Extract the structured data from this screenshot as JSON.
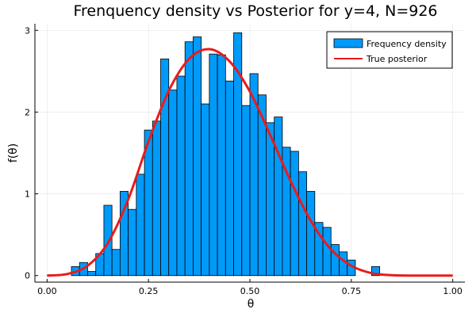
{
  "chart_data": {
    "type": "bar",
    "title": "Frenquency density vs Posterior for y=4, N=926",
    "xlabel": "θ",
    "ylabel": "f(θ)",
    "xlim": [
      -0.03,
      1.03
    ],
    "ylim": [
      -0.08,
      3.08
    ],
    "xticks": [
      {
        "value": 0.0,
        "label": "0.00"
      },
      {
        "value": 0.25,
        "label": "0.25"
      },
      {
        "value": 0.5,
        "label": "0.50"
      },
      {
        "value": 0.75,
        "label": "0.75"
      },
      {
        "value": 1.0,
        "label": "1.00"
      }
    ],
    "yticks": [
      {
        "value": 0,
        "label": "0"
      },
      {
        "value": 1,
        "label": "1"
      },
      {
        "value": 2,
        "label": "2"
      },
      {
        "value": 3,
        "label": "3"
      }
    ],
    "grid": true,
    "legend_position": "top-right",
    "series": [
      {
        "name": "Frequency density",
        "kind": "histogram",
        "color": "#009af9",
        "bin_width": 0.02,
        "bin_starts": [
          0.06,
          0.08,
          0.1,
          0.12,
          0.14,
          0.16,
          0.18,
          0.2,
          0.22,
          0.24,
          0.26,
          0.28,
          0.3,
          0.32,
          0.34,
          0.36,
          0.38,
          0.4,
          0.42,
          0.44,
          0.46,
          0.48,
          0.5,
          0.52,
          0.54,
          0.56,
          0.58,
          0.6,
          0.62,
          0.64,
          0.66,
          0.68,
          0.7,
          0.72,
          0.74,
          0.8
        ],
        "values": [
          0.11,
          0.16,
          0.05,
          0.27,
          0.86,
          0.32,
          1.03,
          0.81,
          1.24,
          1.78,
          1.89,
          2.65,
          2.27,
          2.44,
          2.86,
          2.92,
          2.1,
          2.71,
          2.7,
          2.38,
          2.97,
          2.08,
          2.47,
          2.21,
          1.87,
          1.94,
          1.57,
          1.52,
          1.27,
          1.03,
          0.65,
          0.59,
          0.38,
          0.29,
          0.19,
          0.11
        ]
      },
      {
        "name": "True posterior",
        "kind": "line",
        "color": "#e81c1c",
        "x": [
          0.0,
          0.05,
          0.1,
          0.15,
          0.2,
          0.25,
          0.3,
          0.35,
          0.4,
          0.45,
          0.5,
          0.55,
          0.6,
          0.65,
          0.7,
          0.75,
          0.8,
          0.85,
          0.9,
          0.95,
          1.0
        ],
        "y": [
          0.0,
          0.02,
          0.12,
          0.4,
          0.93,
          1.64,
          2.26,
          2.65,
          2.77,
          2.62,
          2.25,
          1.72,
          1.16,
          0.67,
          0.32,
          0.12,
          0.03,
          0.005,
          0.0,
          0.0,
          0.0
        ]
      }
    ]
  }
}
